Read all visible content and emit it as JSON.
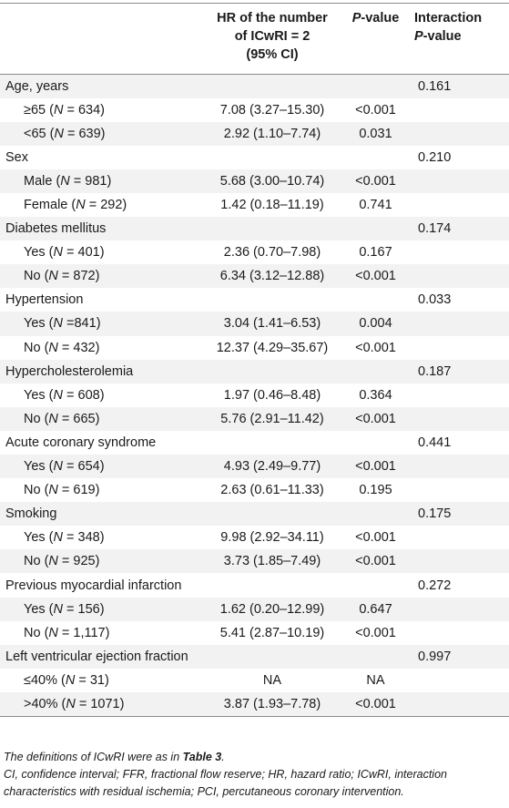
{
  "header": {
    "col1": "",
    "hr_line1": "HR of the number",
    "hr_line2": "of ICwRI = 2",
    "hr_line3": "(95% CI)",
    "p_italic": "P",
    "p_rest": "-value",
    "int_line1": "Interaction",
    "int_p_italic": "P",
    "int_p_rest": "-value"
  },
  "groups": [
    {
      "label": "Age, years",
      "interaction": "0.161",
      "rows": [
        {
          "pre": "≥65 (",
          "n": "N",
          "post": " = 634)",
          "hr": "7.08 (3.27–15.30)",
          "p": "<0.001"
        },
        {
          "pre": "<65 (",
          "n": "N",
          "post": " = 639)",
          "hr": "2.92 (1.10–7.74)",
          "p": "0.031"
        }
      ]
    },
    {
      "label": "Sex",
      "interaction": "0.210",
      "rows": [
        {
          "pre": "Male (",
          "n": "N",
          "post": " = 981)",
          "hr": "5.68 (3.00–10.74)",
          "p": "<0.001"
        },
        {
          "pre": "Female (",
          "n": "N",
          "post": " = 292)",
          "hr": "1.42 (0.18–11.19)",
          "p": "0.741"
        }
      ]
    },
    {
      "label": "Diabetes mellitus",
      "interaction": "0.174",
      "rows": [
        {
          "pre": "Yes (",
          "n": "N",
          "post": " = 401)",
          "hr": "2.36 (0.70–7.98)",
          "p": "0.167"
        },
        {
          "pre": "No (",
          "n": "N",
          "post": " = 872)",
          "hr": "6.34 (3.12–12.88)",
          "p": "<0.001"
        }
      ]
    },
    {
      "label": "Hypertension",
      "interaction": "0.033",
      "rows": [
        {
          "pre": "Yes (",
          "n": "N",
          "post": " =841)",
          "hr": "3.04 (1.41–6.53)",
          "p": "0.004"
        },
        {
          "pre": "No (",
          "n": "N",
          "post": " = 432)",
          "hr": "12.37 (4.29–35.67)",
          "p": "<0.001"
        }
      ]
    },
    {
      "label": "Hypercholesterolemia",
      "interaction": "0.187",
      "rows": [
        {
          "pre": "Yes (",
          "n": "N",
          "post": " = 608)",
          "hr": "1.97 (0.46–8.48)",
          "p": "0.364"
        },
        {
          "pre": "No (",
          "n": "N",
          "post": " = 665)",
          "hr": "5.76 (2.91–11.42)",
          "p": "<0.001"
        }
      ]
    },
    {
      "label": "Acute coronary syndrome",
      "interaction": "0.441",
      "rows": [
        {
          "pre": "Yes (",
          "n": "N",
          "post": " = 654)",
          "hr": "4.93 (2.49–9.77)",
          "p": "<0.001"
        },
        {
          "pre": "No (",
          "n": "N",
          "post": " = 619)",
          "hr": "2.63 (0.61–11.33)",
          "p": "0.195"
        }
      ]
    },
    {
      "label": "Smoking",
      "interaction": "0.175",
      "rows": [
        {
          "pre": "Yes (",
          "n": "N",
          "post": " = 348)",
          "hr": "9.98 (2.92–34.11)",
          "p": "<0.001"
        },
        {
          "pre": "No (",
          "n": "N",
          "post": " = 925)",
          "hr": "3.73 (1.85–7.49)",
          "p": "<0.001"
        }
      ]
    },
    {
      "label": "Previous myocardial infarction",
      "interaction": "0.272",
      "rows": [
        {
          "pre": "Yes (",
          "n": "N",
          "post": " = 156)",
          "hr": "1.62 (0.20–12.99)",
          "p": "0.647"
        },
        {
          "pre": "No (",
          "n": "N",
          "post": " = 1,117)",
          "hr": "5.41 (2.87–10.19)",
          "p": "<0.001"
        }
      ]
    },
    {
      "label": "Left ventricular ejection fraction",
      "interaction": "0.997",
      "rows": [
        {
          "pre": "≤40% (",
          "n": "N",
          "post": " = 31)",
          "hr": "NA",
          "p": "NA"
        },
        {
          "pre": ">40% (",
          "n": "N",
          "post": " = 1071)",
          "hr": "3.87 (1.93–7.78)",
          "p": "<0.001"
        }
      ]
    }
  ],
  "footnote": {
    "line1_pre": "The definitions of ICwRI were as in ",
    "line1_bold": "Table 3",
    "line1_post": ".",
    "line2": "CI, confidence interval; FFR, fractional flow reserve; HR, hazard ratio; ICwRI, interaction characteristics with residual ischemia; PCI, percutaneous coronary intervention."
  }
}
